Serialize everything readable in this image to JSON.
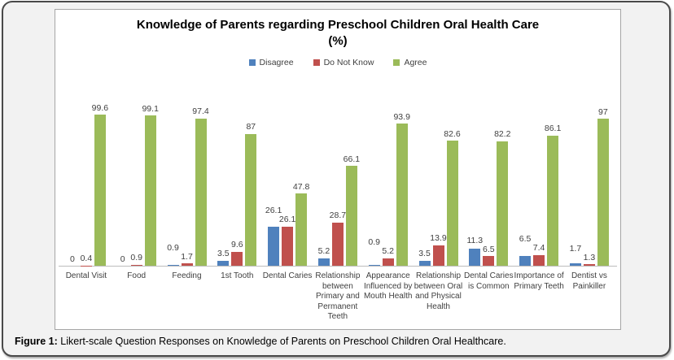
{
  "figure": {
    "caption_label": "Figure 1:",
    "caption_text": " Likert-scale Question Responses on Knowledge of Parents on Preschool Children Oral Healthcare."
  },
  "chart_data": {
    "type": "bar",
    "title": "Knowledge of Parents regarding Preschool Children Oral Health Care (%)",
    "title_lines": [
      "Knowledge of Parents regarding Preschool Children Oral Health Care",
      "(%)"
    ],
    "xlabel": "",
    "ylabel": "",
    "ylim": [
      0,
      100
    ],
    "grid": false,
    "legend_position": "top-center",
    "value_labels_shown": true,
    "categories": [
      "Dental Visit",
      "Food",
      "Feeding",
      "1st Tooth",
      "Dental Caries",
      "Relationship between Primary and Permanent Teeth",
      "Appearance Influenced by Mouth Health",
      "Relationship between Oral and Physical Health",
      "Dental Caries is Common",
      "Importance of Primary Teeth",
      "Dentist vs Painkiller"
    ],
    "category_label_lines": [
      "Dental Visit",
      "Food",
      "Feeding",
      "1st Tooth",
      "Dental Caries",
      "Relationship\nbetween\nPrimary and\nPermanent\nTeeth",
      "Appearance\nInfluenced by\nMouth Health",
      "Relationship\nbetween Oral\nand Physical\nHealth",
      "Dental Caries\nis Common",
      "Importance of\nPrimary Teeth",
      "Dentist vs\nPainkiller"
    ],
    "series": [
      {
        "name": "Disagree",
        "color": "#4F81BD",
        "values": [
          0,
          0,
          0.9,
          3.5,
          26.1,
          5.2,
          0.9,
          3.5,
          11.3,
          6.5,
          1.7
        ]
      },
      {
        "name": "Do Not Know",
        "color": "#C0504D",
        "values": [
          0.4,
          0.9,
          1.7,
          9.6,
          26.1,
          28.7,
          5.2,
          13.9,
          6.5,
          7.4,
          1.3
        ]
      },
      {
        "name": "Agree",
        "color": "#9BBB59",
        "values": [
          99.6,
          99.1,
          97.4,
          87,
          47.8,
          66.1,
          93.9,
          82.6,
          82.2,
          86.1,
          97
        ]
      }
    ]
  }
}
